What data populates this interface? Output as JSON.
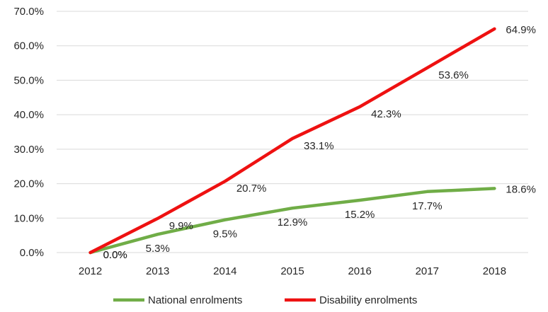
{
  "chart_data": {
    "type": "line",
    "title": "",
    "xlabel": "",
    "ylabel": "",
    "categories": [
      "2012",
      "2013",
      "2014",
      "2015",
      "2016",
      "2017",
      "2018"
    ],
    "ylim": [
      0,
      70
    ],
    "y_ticks": [
      "0.0%",
      "10.0%",
      "20.0%",
      "30.0%",
      "40.0%",
      "50.0%",
      "60.0%",
      "70.0%"
    ],
    "grid": true,
    "legend_position": "bottom",
    "series": [
      {
        "name": "National enrolments",
        "color": "#70ad47",
        "values": [
          0.0,
          5.3,
          9.5,
          12.9,
          15.2,
          17.7,
          18.6
        ],
        "labels": [
          "0.0%",
          "5.3%",
          "9.5%",
          "12.9%",
          "15.2%",
          "17.7%",
          "18.6%"
        ]
      },
      {
        "name": "Disability enrolments",
        "color": "#ee1111",
        "values": [
          0.0,
          9.9,
          20.7,
          33.1,
          42.3,
          53.6,
          64.9
        ],
        "labels": [
          "0.0%",
          "9.9%",
          "20.7%",
          "33.1%",
          "42.3%",
          "53.6%",
          "64.9%"
        ]
      }
    ]
  }
}
